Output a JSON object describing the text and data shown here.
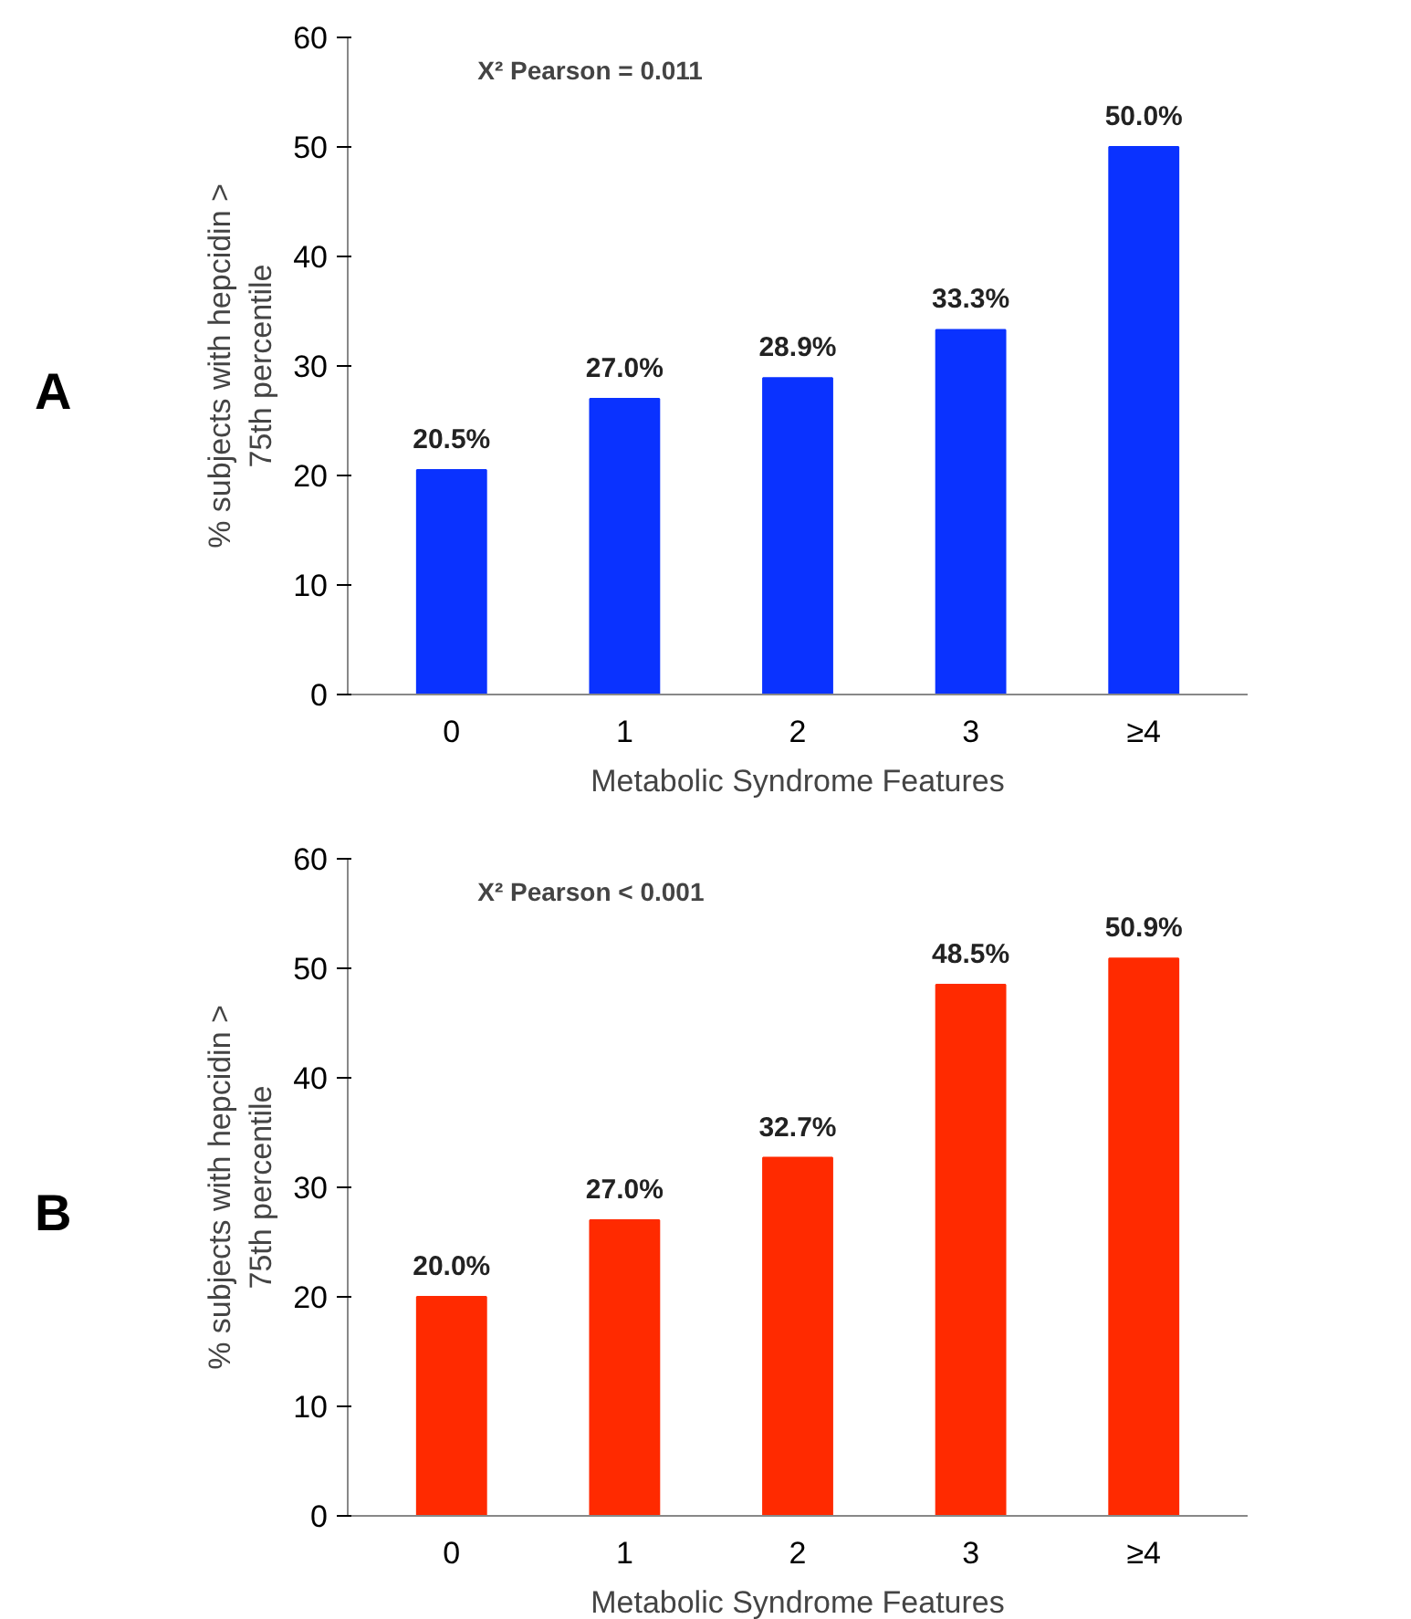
{
  "chart_data": [
    {
      "type": "bar",
      "title": "A",
      "categories": [
        "0",
        "1",
        "2",
        "3",
        "≥4"
      ],
      "values": [
        20.5,
        27.0,
        28.9,
        33.3,
        50.0
      ],
      "value_labels": [
        "20.5%",
        "27.0%",
        "28.9%",
        "33.3%",
        "50.0%"
      ],
      "color": "#0a32ff",
      "xlabel": "Metabolic Syndrome Features",
      "ylabel": "% subjects with hepcidin > 75th percentile",
      "ylim": [
        0,
        60
      ],
      "yticks": [
        0,
        10,
        20,
        30,
        40,
        50,
        60
      ],
      "annotations": [
        "Χ² Pearson = 0.011"
      ],
      "grid": false
    },
    {
      "type": "bar",
      "title": "B",
      "categories": [
        "0",
        "1",
        "2",
        "3",
        "≥4"
      ],
      "values": [
        20.0,
        27.0,
        32.7,
        48.5,
        50.9
      ],
      "value_labels": [
        "20.0%",
        "27.0%",
        "32.7%",
        "48.5%",
        "50.9%"
      ],
      "color": "#ff2a00",
      "xlabel": "Metabolic Syndrome Features",
      "ylabel": "% subjects with hepcidin > 75th percentile",
      "ylim": [
        0,
        60
      ],
      "yticks": [
        0,
        10,
        20,
        30,
        40,
        50,
        60
      ],
      "annotations": [
        "Χ² Pearson < 0.001"
      ],
      "grid": false
    }
  ]
}
